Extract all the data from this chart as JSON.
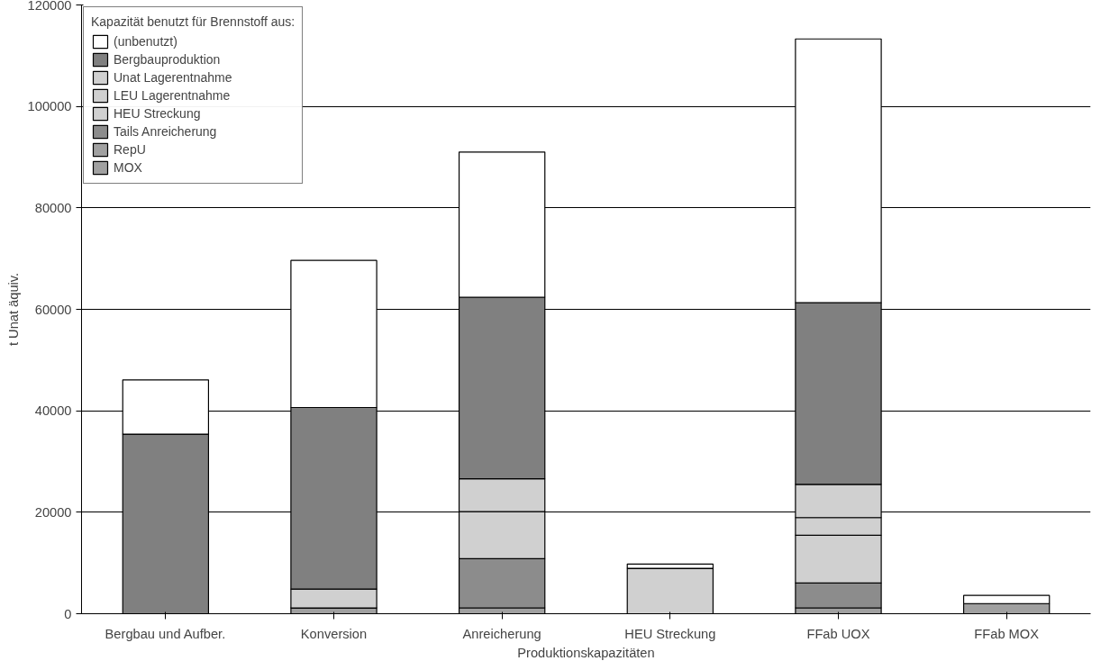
{
  "chart_data": {
    "type": "bar",
    "stacked": true,
    "xlabel": "Produktionskapazitäten",
    "ylabel": "t Unat äquiv.",
    "legend_title": "Kapazität benutzt für Brennstoff aus:",
    "categories": [
      "Bergbau und Aufber.",
      "Konversion",
      "Anreicherung",
      "HEU Streckung",
      "FFab UOX",
      "FFab MOX"
    ],
    "series": [
      {
        "name": "MOX",
        "color": "#a0a0a0",
        "values": [
          0,
          0,
          0,
          0,
          0,
          2000
        ]
      },
      {
        "name": "RepU",
        "color": "#a0a0a0",
        "values": [
          0,
          1150,
          1150,
          0,
          1150,
          0
        ]
      },
      {
        "name": "Tails Anreicherung",
        "color": "#8c8c8c",
        "values": [
          0,
          0,
          9700,
          0,
          4900,
          0
        ]
      },
      {
        "name": "HEU Streckung",
        "color": "#d0d0d0",
        "values": [
          0,
          0,
          9300,
          8950,
          9400,
          0
        ]
      },
      {
        "name": "LEU Lagerentnahme",
        "color": "#d0d0d0",
        "values": [
          0,
          0,
          0,
          0,
          3500,
          0
        ]
      },
      {
        "name": "Unat Lagerentnahme",
        "color": "#d0d0d0",
        "values": [
          0,
          3700,
          6450,
          0,
          6550,
          0
        ]
      },
      {
        "name": "Bergbauproduktion",
        "color": "#808080",
        "values": [
          35400,
          35800,
          35800,
          0,
          35800,
          0
        ]
      },
      {
        "name": "(unbenutzt)",
        "color": "#ffffff",
        "values": [
          10700,
          29000,
          28600,
          850,
          52000,
          1600
        ]
      }
    ],
    "ylim": [
      0,
      120000
    ],
    "yticks": [
      0,
      20000,
      40000,
      60000,
      80000,
      100000,
      120000
    ],
    "grid": "y",
    "legend": "top left"
  }
}
